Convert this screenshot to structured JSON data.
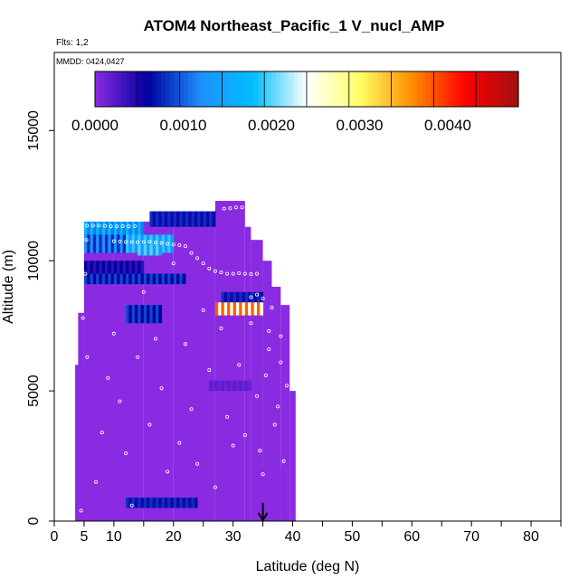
{
  "chart_data": {
    "type": "heatmap",
    "title": "ATOM4 Northeast_Pacific_1 V_nucl_AMP",
    "subtitle_flights": "Flts: 1,2",
    "subtitle_dates": "MMDD: 0424,0427",
    "xlabel": "Latitude (deg N)",
    "ylabel": "Altitude (m)",
    "xlim": [
      0,
      85
    ],
    "ylim": [
      0,
      18000
    ],
    "x_ticks": [
      0,
      5,
      10,
      20,
      30,
      40,
      50,
      60,
      70,
      80
    ],
    "y_ticks": [
      0,
      5000,
      10000,
      15000
    ],
    "colorbar": {
      "min": 0.0,
      "max": 0.0048,
      "tick_values": [
        0.0,
        0.001,
        0.002,
        0.003,
        0.004
      ],
      "tick_labels": [
        "0.0000",
        "0.0010",
        "0.0020",
        "0.0030",
        "0.0040"
      ],
      "colors": [
        "#8a2be2",
        "#0000a0",
        "#1e90ff",
        "#00bfff",
        "#ffffff",
        "#ffff66",
        "#ff8c00",
        "#ff0000",
        "#a01010"
      ]
    },
    "background_fill": {
      "color": "#8a2be2",
      "columns": [
        {
          "x0": 3.5,
          "x1": 5.5,
          "ymax": 6000
        },
        {
          "x0": 4.0,
          "x1": 5.0,
          "ymax": 8000
        },
        {
          "x0": 5.0,
          "x1": 10.0,
          "ymax": 9000
        },
        {
          "x0": 5.0,
          "x1": 10.0,
          "ymax": 11500
        },
        {
          "x0": 10.0,
          "x1": 15.0,
          "ymax": 11000
        },
        {
          "x0": 15.0,
          "x1": 20.0,
          "ymax": 11500
        },
        {
          "x0": 20.0,
          "x1": 27.0,
          "ymax": 11800
        },
        {
          "x0": 27.0,
          "x1": 32.0,
          "ymax": 12300
        },
        {
          "x0": 32.0,
          "x1": 33.0,
          "ymax": 11300
        },
        {
          "x0": 33.0,
          "x1": 35.0,
          "ymax": 10800
        },
        {
          "x0": 35.0,
          "x1": 36.5,
          "ymax": 10000
        },
        {
          "x0": 36.5,
          "x1": 38.0,
          "ymax": 9000
        },
        {
          "x0": 38.0,
          "x1": 39.5,
          "ymax": 8300
        },
        {
          "x0": 39.5,
          "x1": 40.5,
          "ymax": 5000
        },
        {
          "x0": 33.5,
          "x1": 38.0,
          "ymin": 0,
          "ymax": 2000
        }
      ]
    },
    "highlight_cells": [
      {
        "x0": 16.0,
        "x1": 27.0,
        "y0": 11300,
        "y1": 11900,
        "value": 0.0008
      },
      {
        "x0": 5.0,
        "x1": 15.0,
        "y0": 11000,
        "y1": 11500,
        "value": 0.0017
      },
      {
        "x0": 5.0,
        "x1": 12.0,
        "y0": 10300,
        "y1": 11000,
        "value": 0.0012
      },
      {
        "x0": 12.0,
        "x1": 20.0,
        "y0": 10300,
        "y1": 11000,
        "value": 0.0019
      },
      {
        "x0": 14.0,
        "x1": 18.0,
        "y0": 10200,
        "y1": 10600,
        "value": 0.002
      },
      {
        "x0": 5.0,
        "x1": 15.0,
        "y0": 9500,
        "y1": 10000,
        "value": 0.0006
      },
      {
        "x0": 5.0,
        "x1": 22.0,
        "y0": 9100,
        "y1": 9500,
        "value": 0.0009
      },
      {
        "x0": 28.0,
        "x1": 35.0,
        "y0": 8400,
        "y1": 8800,
        "value": 0.0008
      },
      {
        "x0": 27.0,
        "x1": 35.0,
        "y0": 7900,
        "y1": 8400,
        "value": 0.0038
      },
      {
        "x0": 12.0,
        "x1": 18.0,
        "y0": 7600,
        "y1": 8300,
        "value": 0.0009
      },
      {
        "x0": 26.0,
        "x1": 33.0,
        "y0": 5000,
        "y1": 5400,
        "value": 0.0002
      },
      {
        "x0": 12.0,
        "x1": 24.0,
        "y0": 500,
        "y1": 900,
        "value": 0.0008
      }
    ],
    "flight_track_points": [
      [
        5.5,
        11350
      ],
      [
        6.5,
        11350
      ],
      [
        7.5,
        11350
      ],
      [
        8.5,
        11340
      ],
      [
        9.5,
        11320
      ],
      [
        10.5,
        11320
      ],
      [
        11.5,
        11330
      ],
      [
        12.5,
        11320
      ],
      [
        13.5,
        11330
      ],
      [
        10,
        10750
      ],
      [
        11,
        10740
      ],
      [
        12,
        10720
      ],
      [
        13,
        10720
      ],
      [
        14,
        10710
      ],
      [
        15,
        10720
      ],
      [
        16,
        10730
      ],
      [
        17,
        10700
      ],
      [
        18,
        10680
      ],
      [
        19,
        10650
      ],
      [
        20,
        10620
      ],
      [
        21,
        10600
      ],
      [
        22,
        10560
      ],
      [
        23,
        10300
      ],
      [
        24,
        10100
      ],
      [
        25,
        9900
      ],
      [
        26,
        9700
      ],
      [
        27,
        9600
      ],
      [
        28,
        9550
      ],
      [
        29,
        9500
      ],
      [
        30,
        9500
      ],
      [
        31,
        9520
      ],
      [
        32,
        9500
      ],
      [
        33,
        9480
      ],
      [
        34,
        9500
      ],
      [
        28.5,
        12000
      ],
      [
        29.5,
        12020
      ],
      [
        30.5,
        12050
      ],
      [
        31.5,
        12050
      ],
      [
        32.5,
        12060
      ],
      [
        33.5,
        12080
      ],
      [
        33.0,
        8600
      ],
      [
        34.0,
        8700
      ],
      [
        35.0,
        8550
      ],
      [
        4.5,
        400
      ],
      [
        5.5,
        6300
      ],
      [
        4.8,
        7800
      ],
      [
        5.2,
        9500
      ],
      [
        5.4,
        10800
      ],
      [
        7,
        1500
      ],
      [
        8,
        3400
      ],
      [
        9,
        5500
      ],
      [
        10,
        7200
      ],
      [
        11,
        4600
      ],
      [
        12,
        2600
      ],
      [
        13,
        600
      ],
      [
        14,
        6300
      ],
      [
        15,
        8800
      ],
      [
        16,
        3700
      ],
      [
        17,
        7000
      ],
      [
        18,
        5100
      ],
      [
        19,
        1900
      ],
      [
        20,
        9900
      ],
      [
        21,
        3000
      ],
      [
        22,
        6800
      ],
      [
        23,
        4300
      ],
      [
        24,
        2200
      ],
      [
        25,
        8100
      ],
      [
        26,
        5800
      ],
      [
        27,
        1300
      ],
      [
        28,
        7400
      ],
      [
        29,
        4000
      ],
      [
        30,
        2900
      ],
      [
        31,
        6000
      ],
      [
        32,
        3300
      ],
      [
        33,
        7600
      ],
      [
        34,
        4800
      ],
      [
        35,
        1800
      ],
      [
        36,
        6600
      ],
      [
        37,
        3700
      ],
      [
        38,
        7100
      ],
      [
        39,
        5200
      ],
      [
        38.5,
        2300
      ],
      [
        37.5,
        4400
      ],
      [
        36.5,
        8200
      ],
      [
        35.5,
        5600
      ],
      [
        34.5,
        2700
      ],
      [
        36.0,
        7300
      ],
      [
        38.0,
        6100
      ]
    ],
    "marker": {
      "x": 35,
      "y_top": 700,
      "y_bottom": 0
    }
  }
}
